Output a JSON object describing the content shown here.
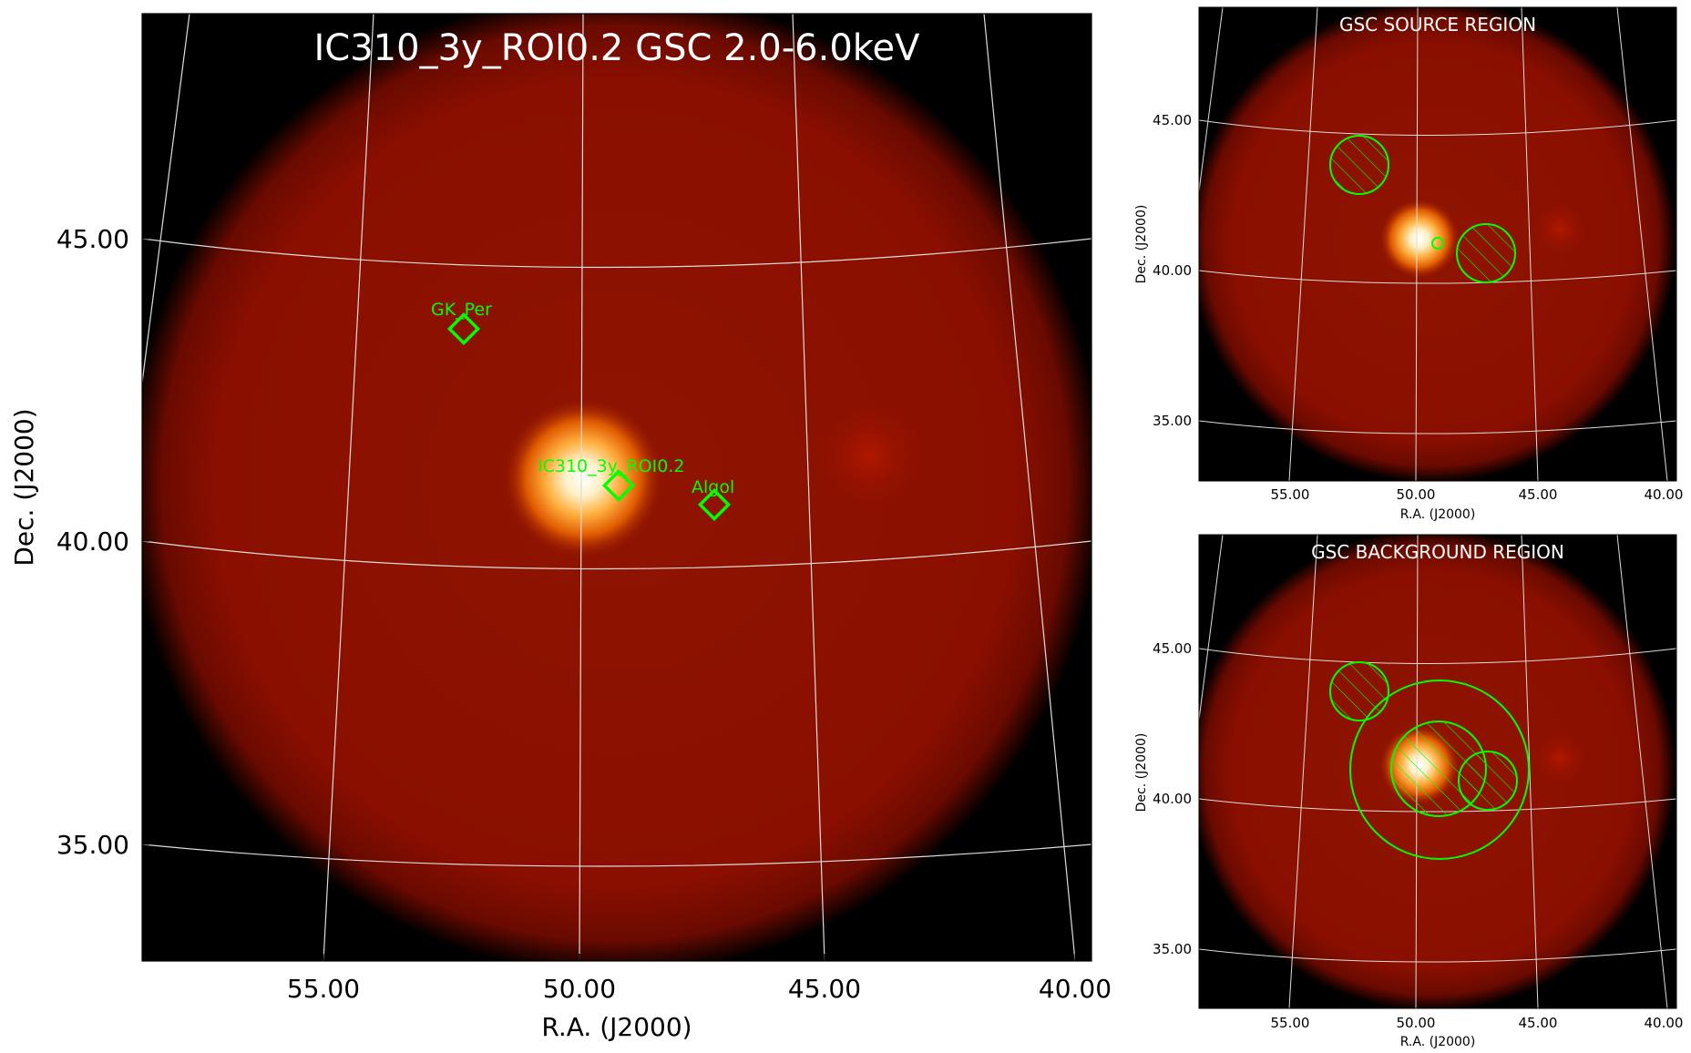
{
  "main_panel": {
    "title": "IC310_3y_ROI0.2 GSC 2.0-6.0keV",
    "xlabel": "R.A. (J2000)",
    "ylabel": "Dec. (J2000)",
    "x_ticks": [
      "55.00",
      "50.00",
      "45.00",
      "40.00"
    ],
    "y_ticks": [
      "45.00",
      "40.00",
      "35.00"
    ],
    "sources": [
      {
        "name": "GK_Per"
      },
      {
        "name": "IC310_3y_ROI0.2"
      },
      {
        "name": "Algol"
      }
    ]
  },
  "source_panel": {
    "title": "GSC SOURCE REGION",
    "xlabel": "R.A. (J2000)",
    "ylabel": "Dec. (J2000)",
    "x_ticks": [
      "55.00",
      "50.00",
      "45.00",
      "40.00"
    ],
    "y_ticks": [
      "45.00",
      "40.00",
      "35.00"
    ]
  },
  "background_panel": {
    "title": "GSC BACKGROUND REGION",
    "xlabel": "R.A. (J2000)",
    "ylabel": "Dec. (J2000)",
    "x_ticks": [
      "55.00",
      "50.00",
      "45.00",
      "40.00"
    ],
    "y_ticks": [
      "45.00",
      "40.00",
      "35.00"
    ]
  },
  "colors": {
    "background_field": "#8b0f00",
    "source_bright": "#fff6e0",
    "marker": "#00ff00",
    "grid": "#dddddd"
  }
}
